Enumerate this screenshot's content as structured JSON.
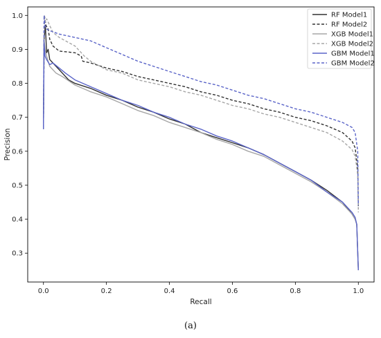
{
  "caption": "(a)",
  "chart_data": {
    "type": "line",
    "xlabel": "Recall",
    "ylabel": "Precision",
    "xlim": [
      -0.05,
      1.05
    ],
    "ylim": [
      0.215,
      1.025
    ],
    "xticks": [
      "0.0",
      "0.2",
      "0.4",
      "0.6",
      "0.8",
      "1.0"
    ],
    "yticks": [
      "0.3",
      "0.4",
      "0.5",
      "0.6",
      "0.7",
      "0.8",
      "0.9",
      "1.0"
    ],
    "legend_position": "top-right",
    "grid": false,
    "series": [
      {
        "name": "RF Model1",
        "color": "#303030",
        "dash": "solid",
        "points": [
          [
            0,
            0.665
          ],
          [
            0.002,
            0.93
          ],
          [
            0.006,
            0.97
          ],
          [
            0.01,
            0.89
          ],
          [
            0.015,
            0.9
          ],
          [
            0.02,
            0.87
          ],
          [
            0.03,
            0.86
          ],
          [
            0.05,
            0.84
          ],
          [
            0.08,
            0.81
          ],
          [
            0.1,
            0.8
          ],
          [
            0.15,
            0.785
          ],
          [
            0.2,
            0.765
          ],
          [
            0.25,
            0.75
          ],
          [
            0.3,
            0.73
          ],
          [
            0.35,
            0.715
          ],
          [
            0.4,
            0.695
          ],
          [
            0.45,
            0.68
          ],
          [
            0.5,
            0.655
          ],
          [
            0.55,
            0.64
          ],
          [
            0.6,
            0.625
          ],
          [
            0.65,
            0.61
          ],
          [
            0.7,
            0.59
          ],
          [
            0.75,
            0.565
          ],
          [
            0.8,
            0.54
          ],
          [
            0.85,
            0.515
          ],
          [
            0.9,
            0.485
          ],
          [
            0.95,
            0.45
          ],
          [
            0.98,
            0.415
          ],
          [
            0.99,
            0.4
          ],
          [
            0.995,
            0.385
          ],
          [
            1.0,
            0.25
          ]
        ]
      },
      {
        "name": "RF Model2",
        "color": "#303030",
        "dash": "dashed",
        "points": [
          [
            0,
            0.67
          ],
          [
            0.003,
            1.0
          ],
          [
            0.008,
            0.97
          ],
          [
            0.015,
            0.96
          ],
          [
            0.02,
            0.93
          ],
          [
            0.03,
            0.91
          ],
          [
            0.05,
            0.895
          ],
          [
            0.1,
            0.89
          ],
          [
            0.12,
            0.88
          ],
          [
            0.125,
            0.865
          ],
          [
            0.15,
            0.86
          ],
          [
            0.2,
            0.845
          ],
          [
            0.25,
            0.835
          ],
          [
            0.3,
            0.82
          ],
          [
            0.35,
            0.81
          ],
          [
            0.4,
            0.8
          ],
          [
            0.45,
            0.79
          ],
          [
            0.5,
            0.775
          ],
          [
            0.55,
            0.765
          ],
          [
            0.6,
            0.75
          ],
          [
            0.65,
            0.74
          ],
          [
            0.7,
            0.725
          ],
          [
            0.75,
            0.715
          ],
          [
            0.8,
            0.7
          ],
          [
            0.85,
            0.69
          ],
          [
            0.9,
            0.675
          ],
          [
            0.95,
            0.655
          ],
          [
            0.98,
            0.63
          ],
          [
            0.99,
            0.61
          ],
          [
            0.998,
            0.55
          ],
          [
            1.0,
            0.43
          ]
        ]
      },
      {
        "name": "XGB Model1",
        "color": "#a6a6a6",
        "dash": "solid",
        "points": [
          [
            0,
            0.665
          ],
          [
            0.002,
            0.93
          ],
          [
            0.005,
            0.9
          ],
          [
            0.01,
            0.88
          ],
          [
            0.02,
            0.85
          ],
          [
            0.04,
            0.83
          ],
          [
            0.06,
            0.82
          ],
          [
            0.1,
            0.795
          ],
          [
            0.15,
            0.775
          ],
          [
            0.2,
            0.76
          ],
          [
            0.25,
            0.74
          ],
          [
            0.3,
            0.72
          ],
          [
            0.35,
            0.705
          ],
          [
            0.4,
            0.685
          ],
          [
            0.45,
            0.67
          ],
          [
            0.5,
            0.655
          ],
          [
            0.55,
            0.635
          ],
          [
            0.6,
            0.62
          ],
          [
            0.65,
            0.6
          ],
          [
            0.7,
            0.585
          ],
          [
            0.75,
            0.56
          ],
          [
            0.8,
            0.535
          ],
          [
            0.85,
            0.51
          ],
          [
            0.9,
            0.48
          ],
          [
            0.95,
            0.445
          ],
          [
            0.98,
            0.415
          ],
          [
            0.99,
            0.4
          ],
          [
            0.995,
            0.385
          ],
          [
            1.0,
            0.25
          ]
        ]
      },
      {
        "name": "XGB Model2",
        "color": "#a6a6a6",
        "dash": "dashed",
        "points": [
          [
            0,
            0.67
          ],
          [
            0.003,
            1.0
          ],
          [
            0.006,
            0.98
          ],
          [
            0.01,
            0.99
          ],
          [
            0.02,
            0.97
          ],
          [
            0.03,
            0.95
          ],
          [
            0.05,
            0.935
          ],
          [
            0.07,
            0.925
          ],
          [
            0.1,
            0.91
          ],
          [
            0.13,
            0.88
          ],
          [
            0.15,
            0.865
          ],
          [
            0.2,
            0.84
          ],
          [
            0.25,
            0.83
          ],
          [
            0.3,
            0.81
          ],
          [
            0.35,
            0.8
          ],
          [
            0.4,
            0.79
          ],
          [
            0.45,
            0.775
          ],
          [
            0.5,
            0.765
          ],
          [
            0.55,
            0.75
          ],
          [
            0.6,
            0.735
          ],
          [
            0.65,
            0.725
          ],
          [
            0.7,
            0.71
          ],
          [
            0.75,
            0.7
          ],
          [
            0.8,
            0.685
          ],
          [
            0.85,
            0.67
          ],
          [
            0.9,
            0.655
          ],
          [
            0.95,
            0.63
          ],
          [
            0.98,
            0.605
          ],
          [
            0.99,
            0.585
          ],
          [
            0.998,
            0.53
          ],
          [
            1.0,
            0.42
          ]
        ]
      },
      {
        "name": "GBM Model1",
        "color": "#5a64c8",
        "dash": "solid",
        "points": [
          [
            0,
            0.665
          ],
          [
            0.002,
            0.92
          ],
          [
            0.005,
            0.88
          ],
          [
            0.01,
            0.87
          ],
          [
            0.02,
            0.855
          ],
          [
            0.03,
            0.86
          ],
          [
            0.05,
            0.845
          ],
          [
            0.07,
            0.83
          ],
          [
            0.1,
            0.81
          ],
          [
            0.15,
            0.79
          ],
          [
            0.2,
            0.77
          ],
          [
            0.25,
            0.75
          ],
          [
            0.3,
            0.735
          ],
          [
            0.35,
            0.715
          ],
          [
            0.4,
            0.7
          ],
          [
            0.45,
            0.68
          ],
          [
            0.5,
            0.665
          ],
          [
            0.55,
            0.645
          ],
          [
            0.6,
            0.63
          ],
          [
            0.65,
            0.61
          ],
          [
            0.7,
            0.59
          ],
          [
            0.75,
            0.565
          ],
          [
            0.8,
            0.54
          ],
          [
            0.85,
            0.515
          ],
          [
            0.9,
            0.48
          ],
          [
            0.95,
            0.45
          ],
          [
            0.98,
            0.42
          ],
          [
            0.99,
            0.405
          ],
          [
            0.995,
            0.385
          ],
          [
            1.0,
            0.25
          ]
        ]
      },
      {
        "name": "GBM Model2",
        "color": "#5a64c8",
        "dash": "dashed",
        "points": [
          [
            0,
            0.67
          ],
          [
            0.002,
            1.0
          ],
          [
            0.005,
            0.97
          ],
          [
            0.01,
            0.96
          ],
          [
            0.02,
            0.955
          ],
          [
            0.05,
            0.945
          ],
          [
            0.1,
            0.935
          ],
          [
            0.15,
            0.925
          ],
          [
            0.2,
            0.905
          ],
          [
            0.25,
            0.885
          ],
          [
            0.3,
            0.865
          ],
          [
            0.35,
            0.85
          ],
          [
            0.4,
            0.835
          ],
          [
            0.45,
            0.82
          ],
          [
            0.5,
            0.805
          ],
          [
            0.55,
            0.795
          ],
          [
            0.6,
            0.78
          ],
          [
            0.65,
            0.765
          ],
          [
            0.7,
            0.755
          ],
          [
            0.75,
            0.74
          ],
          [
            0.8,
            0.725
          ],
          [
            0.85,
            0.715
          ],
          [
            0.9,
            0.7
          ],
          [
            0.95,
            0.685
          ],
          [
            0.98,
            0.67
          ],
          [
            0.99,
            0.655
          ],
          [
            0.998,
            0.6
          ],
          [
            1.0,
            0.44
          ]
        ]
      }
    ]
  }
}
